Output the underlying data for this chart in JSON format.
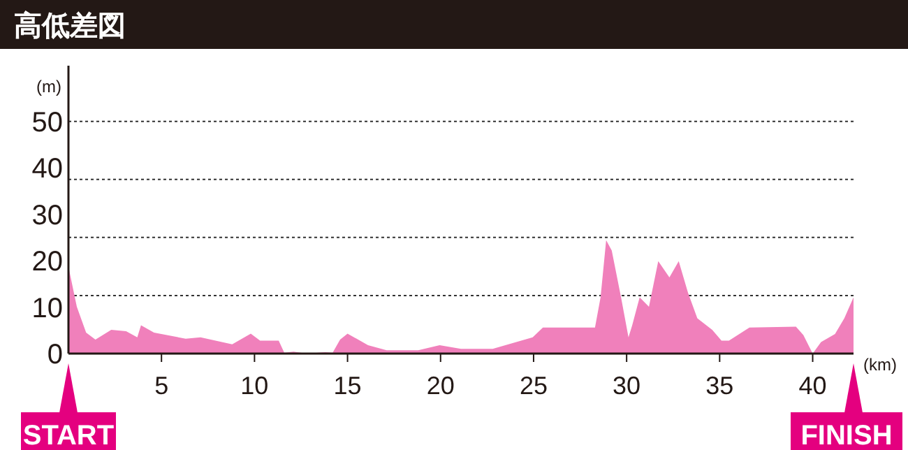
{
  "chart_data": {
    "type": "area",
    "title": "高低差図",
    "ylabel": "(m)",
    "xlabel": "(km)",
    "x": [
      0,
      0.45,
      0.95,
      1.45,
      2.3,
      3.1,
      3.7,
      3.9,
      4.6,
      6.3,
      7.1,
      8.8,
      9.8,
      10.3,
      11.3,
      11.6,
      12.1,
      12.8,
      13.8,
      14.2,
      14.6,
      15.0,
      16.1,
      17.1,
      18.8,
      19.95,
      21.1,
      22.8,
      24.95,
      25.5,
      28.3,
      28.6,
      28.9,
      29.2,
      29.7,
      30.1,
      30.3,
      30.7,
      31.2,
      31.7,
      32.3,
      32.8,
      33.3,
      33.8,
      34.6,
      35.1,
      35.5,
      36.6,
      39.1,
      39.5,
      40.0,
      40.45,
      41.2,
      41.7,
      42.195
    ],
    "series": [
      {
        "color": "#f080bb",
        "values": [
          18.7,
          10.1,
          4.5,
          3.0,
          5.1,
          4.8,
          3.5,
          6.1,
          4.5,
          3.2,
          3.5,
          2.0,
          4.3,
          2.8,
          2.8,
          0.2,
          0.4,
          0,
          0.3,
          0.2,
          3.0,
          4.3,
          1.8,
          0.7,
          0.7,
          1.8,
          1.0,
          1.0,
          3.5,
          5.6,
          5.6,
          12.1,
          24.4,
          22.2,
          12.1,
          3.5,
          6.1,
          12.1,
          10.1,
          19.9,
          16.4,
          19.9,
          13.1,
          7.6,
          5.1,
          2.8,
          2.8,
          5.6,
          5.8,
          4.0,
          0,
          2.5,
          4.2,
          7.6,
          12.1
        ]
      }
    ],
    "xlim": [
      0,
      42.195
    ],
    "ylim": [
      0,
      62
    ],
    "xticks": [
      5,
      10,
      15,
      20,
      25,
      30,
      35,
      40
    ],
    "yticks": [
      0,
      10,
      20,
      30,
      40,
      50
    ],
    "ref_lines": [
      {
        "axis": "y",
        "value": 12.5,
        "line_style": "dotted"
      },
      {
        "axis": "y",
        "value": 25,
        "line_style": "dotted"
      },
      {
        "axis": "y",
        "value": 37.5,
        "line_style": "dotted"
      },
      {
        "axis": "y",
        "value": 50,
        "line_style": "dotted"
      }
    ],
    "annotations": [
      {
        "text": "START",
        "x": 0,
        "y": 0
      },
      {
        "text": "FINISH",
        "x": 42.195,
        "y": 0
      }
    ]
  }
}
